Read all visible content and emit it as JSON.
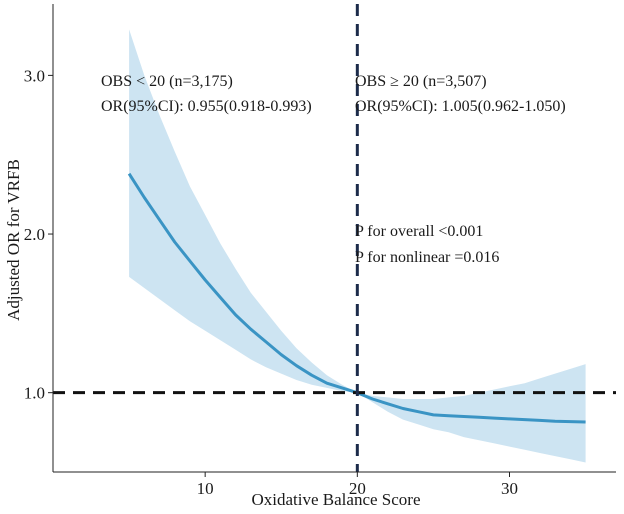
{
  "chart_data": {
    "type": "line",
    "title": "",
    "xlabel": "Oxidative Balance Score",
    "ylabel": "Adjusted OR for VRFB",
    "xlim": [
      0,
      37
    ],
    "ylim": [
      0.5,
      3.45
    ],
    "x_ticks": [
      10,
      20,
      30
    ],
    "x_tick_labels": [
      "10",
      "20",
      "30"
    ],
    "y_ticks": [
      1.0,
      2.0,
      3.0
    ],
    "y_tick_labels": [
      "1.0",
      "2.0",
      "3.0"
    ],
    "grid": false,
    "colors": {
      "line": "#3a94c4",
      "ci_band": "#cde4f2",
      "reference": "#111111",
      "cutoff": "#1c2b4a"
    },
    "reference_line": {
      "axis": "y",
      "value": 1.0,
      "style": "dashed"
    },
    "cutoff_line": {
      "axis": "x",
      "value": 20,
      "style": "dashed"
    },
    "series": [
      {
        "name": "OR",
        "x": [
          5,
          6,
          7,
          8,
          9,
          10,
          11,
          12,
          13,
          14,
          15,
          16,
          17,
          18,
          19,
          20,
          21,
          22,
          23,
          24,
          25,
          26,
          27,
          28,
          29,
          30,
          31,
          32,
          33,
          34,
          35
        ],
        "y": [
          2.38,
          2.23,
          2.09,
          1.95,
          1.83,
          1.71,
          1.6,
          1.49,
          1.4,
          1.32,
          1.24,
          1.17,
          1.11,
          1.06,
          1.03,
          1.0,
          0.96,
          0.93,
          0.9,
          0.88,
          0.86,
          0.855,
          0.85,
          0.845,
          0.84,
          0.835,
          0.83,
          0.825,
          0.82,
          0.818,
          0.815
        ],
        "lower": [
          1.73,
          1.66,
          1.59,
          1.52,
          1.45,
          1.39,
          1.33,
          1.27,
          1.21,
          1.16,
          1.12,
          1.08,
          1.05,
          1.03,
          1.01,
          1.0,
          0.94,
          0.88,
          0.83,
          0.8,
          0.77,
          0.75,
          0.72,
          0.7,
          0.68,
          0.66,
          0.64,
          0.62,
          0.6,
          0.58,
          0.56
        ],
        "upper": [
          3.29,
          3.0,
          2.75,
          2.52,
          2.3,
          2.12,
          1.94,
          1.78,
          1.63,
          1.51,
          1.39,
          1.28,
          1.19,
          1.11,
          1.05,
          1.0,
          0.98,
          0.97,
          0.96,
          0.96,
          0.96,
          0.97,
          0.98,
          1.0,
          1.02,
          1.04,
          1.06,
          1.09,
          1.12,
          1.15,
          1.18
        ]
      }
    ],
    "annotations": [
      {
        "id": "left_group",
        "lines": [
          "OBS < 20 (n=3,175)",
          "OR(95%CI): 0.955(0.918-0.993)"
        ]
      },
      {
        "id": "right_group",
        "lines": [
          "OBS ≥ 20 (n=3,507)",
          "OR(95%CI): 1.005(0.962-1.050)"
        ]
      },
      {
        "id": "p_values",
        "lines": [
          "P for overall <0.001",
          "P for nonlinear =0.016"
        ]
      }
    ]
  }
}
